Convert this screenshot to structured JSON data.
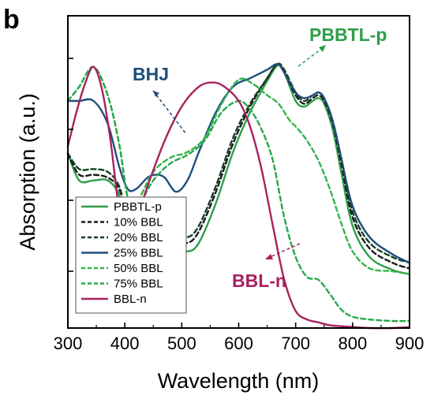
{
  "panel_label": "b",
  "chart_data": {
    "type": "line",
    "xlabel": "Wavelength (nm)",
    "ylabel": "Absorption (a.u.)",
    "xlim": [
      300,
      900
    ],
    "ylim": [
      0,
      1.1
    ],
    "xticks": [
      300,
      400,
      500,
      600,
      700,
      800,
      900
    ],
    "yticks": [
      0.2,
      0.45,
      0.7,
      0.95
    ],
    "grid": false,
    "legend_position": "bottom-left",
    "annotations": [
      {
        "text": "BHJ",
        "color": "#1f4e79"
      },
      {
        "text": "PBBTL-p",
        "color": "#2e9e4a"
      },
      {
        "text": "BBL-n",
        "color": "#a8215f"
      }
    ],
    "series": [
      {
        "name": "PBBTL-p",
        "color": "#2e9e4a",
        "dash": "solid",
        "x": [
          300,
          320,
          345,
          370,
          390,
          405,
          420,
          440,
          455,
          470,
          490,
          510,
          530,
          560,
          590,
          620,
          650,
          668,
          680,
          700,
          715,
          730,
          740,
          750,
          765,
          780,
          800,
          830,
          870,
          900
        ],
        "y": [
          0.615,
          0.52,
          0.52,
          0.52,
          0.47,
          0.36,
          0.34,
          0.41,
          0.41,
          0.37,
          0.29,
          0.27,
          0.3,
          0.44,
          0.62,
          0.76,
          0.87,
          0.925,
          0.9,
          0.8,
          0.78,
          0.8,
          0.81,
          0.79,
          0.7,
          0.55,
          0.36,
          0.25,
          0.205,
          0.19
        ]
      },
      {
        "name": "10% BBL",
        "color": "#1a1a1a",
        "dash": "dashed",
        "x": [
          300,
          320,
          345,
          370,
          390,
          405,
          420,
          440,
          455,
          470,
          490,
          510,
          530,
          560,
          590,
          620,
          650,
          668,
          680,
          700,
          715,
          730,
          740,
          750,
          765,
          780,
          800,
          830,
          870,
          900
        ],
        "y": [
          0.615,
          0.54,
          0.54,
          0.53,
          0.49,
          0.38,
          0.35,
          0.41,
          0.42,
          0.38,
          0.32,
          0.3,
          0.34,
          0.48,
          0.65,
          0.78,
          0.88,
          0.93,
          0.9,
          0.82,
          0.79,
          0.81,
          0.82,
          0.8,
          0.72,
          0.58,
          0.39,
          0.28,
          0.23,
          0.21
        ]
      },
      {
        "name": "20% BBL",
        "color": "#144023",
        "dash": "dashed",
        "x": [
          300,
          320,
          345,
          370,
          390,
          405,
          420,
          440,
          455,
          470,
          490,
          510,
          530,
          560,
          590,
          620,
          650,
          668,
          680,
          700,
          715,
          730,
          740,
          750,
          765,
          780,
          800,
          830,
          870,
          900
        ],
        "y": [
          0.615,
          0.56,
          0.56,
          0.55,
          0.5,
          0.39,
          0.36,
          0.42,
          0.43,
          0.39,
          0.34,
          0.32,
          0.36,
          0.5,
          0.67,
          0.79,
          0.88,
          0.93,
          0.91,
          0.83,
          0.8,
          0.82,
          0.83,
          0.81,
          0.73,
          0.6,
          0.41,
          0.3,
          0.25,
          0.23
        ]
      },
      {
        "name": "25% BBL",
        "color": "#1f4e79",
        "dash": "solid",
        "x": [
          300,
          320,
          345,
          370,
          390,
          405,
          420,
          440,
          455,
          470,
          490,
          510,
          530,
          560,
          590,
          620,
          650,
          668,
          680,
          700,
          715,
          730,
          740,
          750,
          765,
          780,
          800,
          830,
          870,
          900
        ],
        "y": [
          0.8,
          0.8,
          0.8,
          0.72,
          0.57,
          0.49,
          0.49,
          0.53,
          0.54,
          0.53,
          0.48,
          0.52,
          0.62,
          0.76,
          0.85,
          0.88,
          0.91,
          0.93,
          0.9,
          0.83,
          0.81,
          0.82,
          0.83,
          0.81,
          0.73,
          0.6,
          0.43,
          0.32,
          0.26,
          0.23
        ]
      },
      {
        "name": "50% BBL",
        "color": "#33b54b",
        "dash": "dashed",
        "x": [
          300,
          320,
          345,
          370,
          390,
          405,
          420,
          450,
          480,
          510,
          540,
          570,
          600,
          625,
          650,
          670,
          690,
          700,
          720,
          740,
          760,
          780,
          800,
          830,
          870,
          900
        ],
        "y": [
          0.8,
          0.85,
          0.92,
          0.82,
          0.65,
          0.46,
          0.44,
          0.55,
          0.6,
          0.62,
          0.67,
          0.79,
          0.875,
          0.86,
          0.82,
          0.79,
          0.73,
          0.71,
          0.66,
          0.59,
          0.49,
          0.37,
          0.27,
          0.21,
          0.2,
          0.19
        ]
      },
      {
        "name": "75% BBL",
        "color": "#2aa84a",
        "dash": "dashed",
        "x": [
          300,
          320,
          345,
          370,
          390,
          405,
          420,
          450,
          480,
          510,
          540,
          570,
          600,
          620,
          640,
          660,
          680,
          700,
          720,
          740,
          760,
          780,
          800,
          830,
          870,
          900
        ],
        "y": [
          0.8,
          0.85,
          0.92,
          0.82,
          0.65,
          0.46,
          0.42,
          0.52,
          0.58,
          0.61,
          0.66,
          0.76,
          0.8,
          0.77,
          0.7,
          0.59,
          0.39,
          0.25,
          0.18,
          0.17,
          0.12,
          0.065,
          0.04,
          0.03,
          0.025,
          0.025
        ]
      },
      {
        "name": "BBL-n",
        "color": "#a8215f",
        "dash": "solid",
        "x": [
          300,
          315,
          330,
          345,
          360,
          375,
          390,
          405,
          420,
          440,
          470,
          500,
          530,
          555,
          575,
          600,
          620,
          640,
          660,
          680,
          700,
          720,
          740,
          760,
          790,
          830,
          870,
          900
        ],
        "y": [
          0.64,
          0.76,
          0.86,
          0.92,
          0.84,
          0.66,
          0.42,
          0.32,
          0.38,
          0.5,
          0.66,
          0.78,
          0.85,
          0.865,
          0.85,
          0.8,
          0.71,
          0.56,
          0.36,
          0.17,
          0.06,
          0.03,
          0.02,
          0.01,
          0.005,
          0.0,
          0.0,
          0.003
        ]
      }
    ]
  }
}
